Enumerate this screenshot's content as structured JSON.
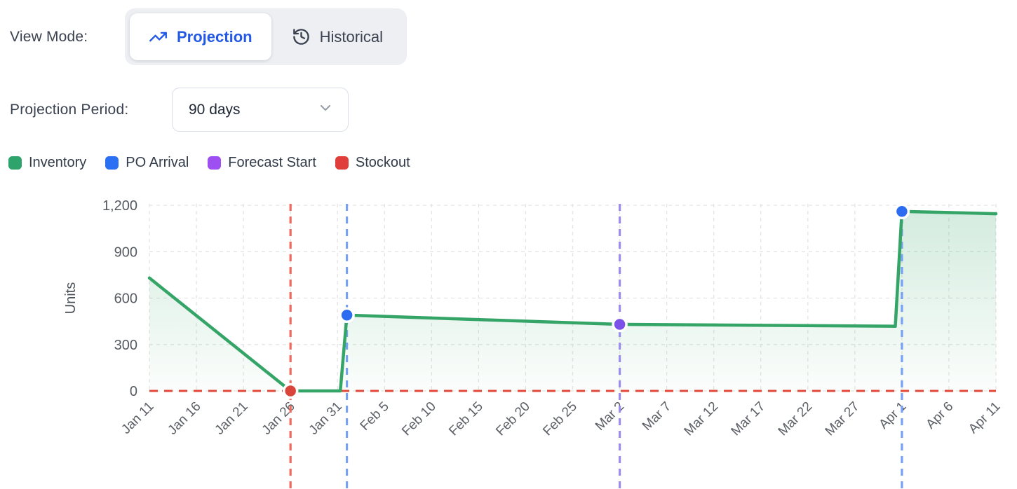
{
  "controls": {
    "view_mode_label": "View Mode:",
    "view_mode_options": [
      {
        "label": "Projection",
        "active": true
      },
      {
        "label": "Historical",
        "active": false
      }
    ],
    "period_label": "Projection Period:",
    "period_value": "90 days"
  },
  "colors": {
    "accent_blue": "#2459e6",
    "toggle_bg": "#edeff3",
    "text_dark": "#3a4250"
  },
  "legend": [
    {
      "label": "Inventory",
      "color": "#2ea36b"
    },
    {
      "label": "PO Arrival",
      "color": "#2b70f3"
    },
    {
      "label": "Forecast Start",
      "color": "#9d4ff2"
    },
    {
      "label": "Stockout",
      "color": "#e03e3a"
    }
  ],
  "chart_data": {
    "type": "line",
    "title": "",
    "xlabel": "",
    "ylabel": "Units",
    "grid": true,
    "ylim": [
      0,
      1200
    ],
    "y_ticks": [
      0,
      300,
      600,
      900,
      1200
    ],
    "x_day_range": [
      0,
      90
    ],
    "x_tick_step_days": 5,
    "x_ticks": [
      "Jan 11",
      "Jan 16",
      "Jan 21",
      "Jan 26",
      "Jan 31",
      "Feb 5",
      "Feb 10",
      "Feb 15",
      "Feb 20",
      "Feb 25",
      "Mar 2",
      "Mar 7",
      "Mar 12",
      "Mar 17",
      "Mar 22",
      "Mar 27",
      "Apr 1",
      "Apr 6",
      "Apr 11"
    ],
    "line_color": "#34a567",
    "zero_line_color": "#e2483a",
    "series": [
      {
        "name": "Inventory",
        "points": [
          {
            "day": 0,
            "date": "Jan 11",
            "units": 730
          },
          {
            "day": 15,
            "date": "Jan 26",
            "units": 0
          },
          {
            "day": 20.3,
            "date": "Jan 31",
            "units": 0
          },
          {
            "day": 21,
            "date": "Feb 1",
            "units": 490
          },
          {
            "day": 50,
            "date": "Mar 2",
            "units": 430
          },
          {
            "day": 79.3,
            "date": "Apr 1",
            "units": 418
          },
          {
            "day": 80,
            "date": "Apr 1",
            "units": 1160
          },
          {
            "day": 90,
            "date": "Apr 11",
            "units": 1145
          }
        ]
      }
    ],
    "events": [
      {
        "name": "Stockout",
        "slug": "stockout",
        "date": "Jan 26",
        "day": 15,
        "units": 0,
        "line_color": "#ee6a5e",
        "dot_color": "#d9453a"
      },
      {
        "name": "PO Arrival",
        "slug": "po-arrival-1",
        "date": "Feb 1",
        "day": 21,
        "units": 490,
        "line_color": "#76a1f4",
        "dot_color": "#2c6cf0"
      },
      {
        "name": "Forecast Start",
        "slug": "forecast-start",
        "date": "Mar 2",
        "day": 50,
        "units": 430,
        "line_color": "#9a8cf1",
        "dot_color": "#7b51e8"
      },
      {
        "name": "PO Arrival",
        "slug": "po-arrival-2",
        "date": "Apr 1",
        "day": 80,
        "units": 1160,
        "line_color": "#76a1f4",
        "dot_color": "#2c6cf0"
      }
    ],
    "zero_line": true,
    "legend_position": "top-left"
  }
}
